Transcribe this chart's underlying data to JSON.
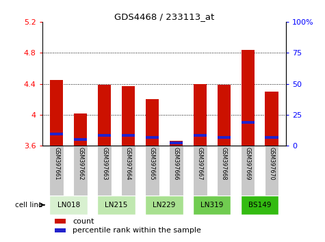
{
  "title": "GDS4468 / 233113_at",
  "samples": [
    "GSM397661",
    "GSM397662",
    "GSM397663",
    "GSM397664",
    "GSM397665",
    "GSM397666",
    "GSM397667",
    "GSM397668",
    "GSM397669",
    "GSM397670"
  ],
  "cell_lines": [
    {
      "name": "LN018",
      "indices": [
        0,
        1
      ]
    },
    {
      "name": "LN215",
      "indices": [
        2,
        3
      ]
    },
    {
      "name": "LN229",
      "indices": [
        4,
        5
      ]
    },
    {
      "name": "LN319",
      "indices": [
        6,
        7
      ]
    },
    {
      "name": "BS149",
      "indices": [
        8,
        9
      ]
    }
  ],
  "count_values": [
    4.45,
    4.02,
    4.39,
    4.37,
    4.2,
    3.66,
    4.4,
    4.39,
    4.84,
    4.3
  ],
  "percentile_values": [
    3.75,
    3.68,
    3.73,
    3.73,
    3.71,
    3.64,
    3.73,
    3.71,
    3.9,
    3.71
  ],
  "ymin": 3.6,
  "ymax": 5.2,
  "yticks": [
    3.6,
    4.0,
    4.4,
    4.8,
    5.2
  ],
  "y2ticks": [
    0,
    25,
    50,
    75,
    100
  ],
  "bar_color": "#cc1100",
  "percentile_color": "#2222cc",
  "bar_width": 0.55,
  "sample_bg_color": "#c8c8c8",
  "cell_line_colors": [
    "#d8f0d0",
    "#c0e8b0",
    "#a8e090",
    "#70cc50",
    "#33bb11"
  ],
  "legend_count_label": "count",
  "legend_percentile_label": "percentile rank within the sample"
}
